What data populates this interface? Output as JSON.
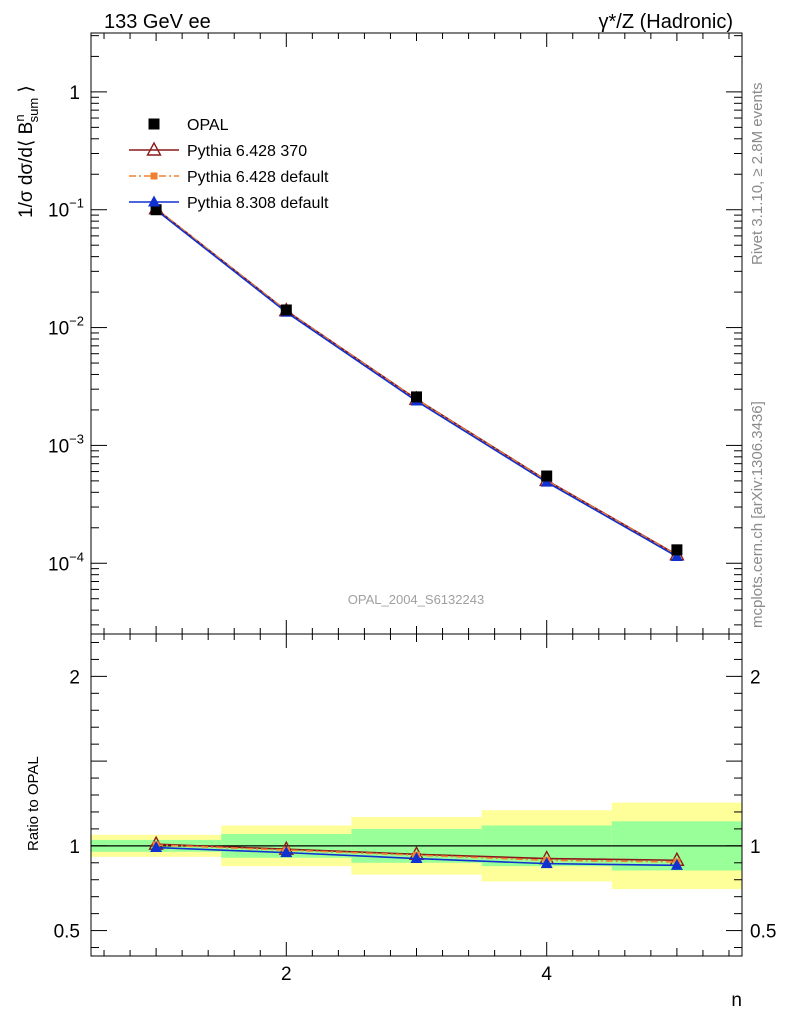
{
  "header": {
    "left": "133 GeV ee",
    "right": "γ*/Z (Hadronic)"
  },
  "side": {
    "rivet": "Rivet 3.1.10, ≥ 2.8M events",
    "mcplots": "mcplots.cern.ch [arXiv:1306.3436]"
  },
  "watermark": "OPAL_2004_S6132243",
  "colors": {
    "opal": "#000000",
    "py6_370": "#8b1a1a",
    "py6_default": "#f28030",
    "py8_default": "#1030d0",
    "band_inner": "#99ff99",
    "band_outer": "#ffff99"
  },
  "chart_data": [
    {
      "type": "line",
      "name": "main",
      "ylabel": "1/σ dσ/d⟨ B_sum^n ⟩",
      "xlim": [
        0.5,
        5.5
      ],
      "ylim": [
        2.51e-05,
        3.16
      ],
      "yscale": "log",
      "yticks": [
        {
          "value": 1,
          "base": "1",
          "exp": ""
        },
        {
          "value": 0.1,
          "base": "10",
          "exp": "−1"
        },
        {
          "value": 0.01,
          "base": "10",
          "exp": "−2"
        },
        {
          "value": 0.001,
          "base": "10",
          "exp": "−3"
        },
        {
          "value": 0.0001,
          "base": "10",
          "exp": "−4"
        }
      ],
      "x": [
        1,
        2,
        3,
        4,
        5
      ],
      "legend_position": "top-left",
      "series": [
        {
          "name": "OPAL",
          "key": "opal",
          "style": "points",
          "marker": "square",
          "values": [
            0.1,
            0.0141,
            0.00258,
            0.00055,
            0.00013
          ]
        },
        {
          "name": "Pythia 6.428 370",
          "key": "py6_370",
          "style": "solid",
          "marker": "triangle-open",
          "values": [
            0.102,
            0.0139,
            0.00247,
            0.000505,
            0.000118
          ]
        },
        {
          "name": "Pythia 6.428 default",
          "key": "py6_default",
          "style": "dashdot",
          "marker": "small-square",
          "values": [
            0.102,
            0.0138,
            0.00245,
            0.000501,
            0.000117
          ]
        },
        {
          "name": "Pythia 8.308 default",
          "key": "py8_default",
          "style": "solid",
          "marker": "triangle-filled",
          "values": [
            0.0995,
            0.0135,
            0.00238,
            0.000488,
            0.000114
          ]
        }
      ]
    },
    {
      "type": "line",
      "name": "ratio",
      "xlabel": "n",
      "ylabel": "Ratio to OPAL",
      "xlim": [
        0.5,
        5.5
      ],
      "ylim": [
        0.35,
        2.25
      ],
      "xticks": [
        2,
        4
      ],
      "yticks": [
        0.5,
        1,
        2
      ],
      "bands": [
        {
          "x0": 0.5,
          "x1": 1.5,
          "inner": [
            0.965,
            1.035
          ],
          "outer": [
            0.935,
            1.065
          ]
        },
        {
          "x0": 1.5,
          "x1": 2.5,
          "inner": [
            0.93,
            1.07
          ],
          "outer": [
            0.88,
            1.12
          ]
        },
        {
          "x0": 2.5,
          "x1": 3.5,
          "inner": [
            0.9,
            1.1
          ],
          "outer": [
            0.83,
            1.17
          ]
        },
        {
          "x0": 3.5,
          "x1": 4.5,
          "inner": [
            0.88,
            1.12
          ],
          "outer": [
            0.79,
            1.21
          ]
        },
        {
          "x0": 4.5,
          "x1": 5.5,
          "inner": [
            0.855,
            1.145
          ],
          "outer": [
            0.745,
            1.255
          ]
        }
      ],
      "series": [
        {
          "name": "Pythia 6.428 370",
          "key": "py6_370",
          "style": "solid",
          "marker": "triangle-open",
          "values": [
            1.01,
            0.98,
            0.95,
            0.925,
            0.915
          ]
        },
        {
          "name": "Pythia 6.428 default",
          "key": "py6_default",
          "style": "dashdot",
          "marker": "small-square",
          "values": [
            1.005,
            0.975,
            0.945,
            0.915,
            0.905
          ]
        },
        {
          "name": "Pythia 8.308 default",
          "key": "py8_default",
          "style": "solid",
          "marker": "triangle-filled",
          "values": [
            0.99,
            0.96,
            0.925,
            0.895,
            0.885
          ]
        }
      ]
    }
  ]
}
